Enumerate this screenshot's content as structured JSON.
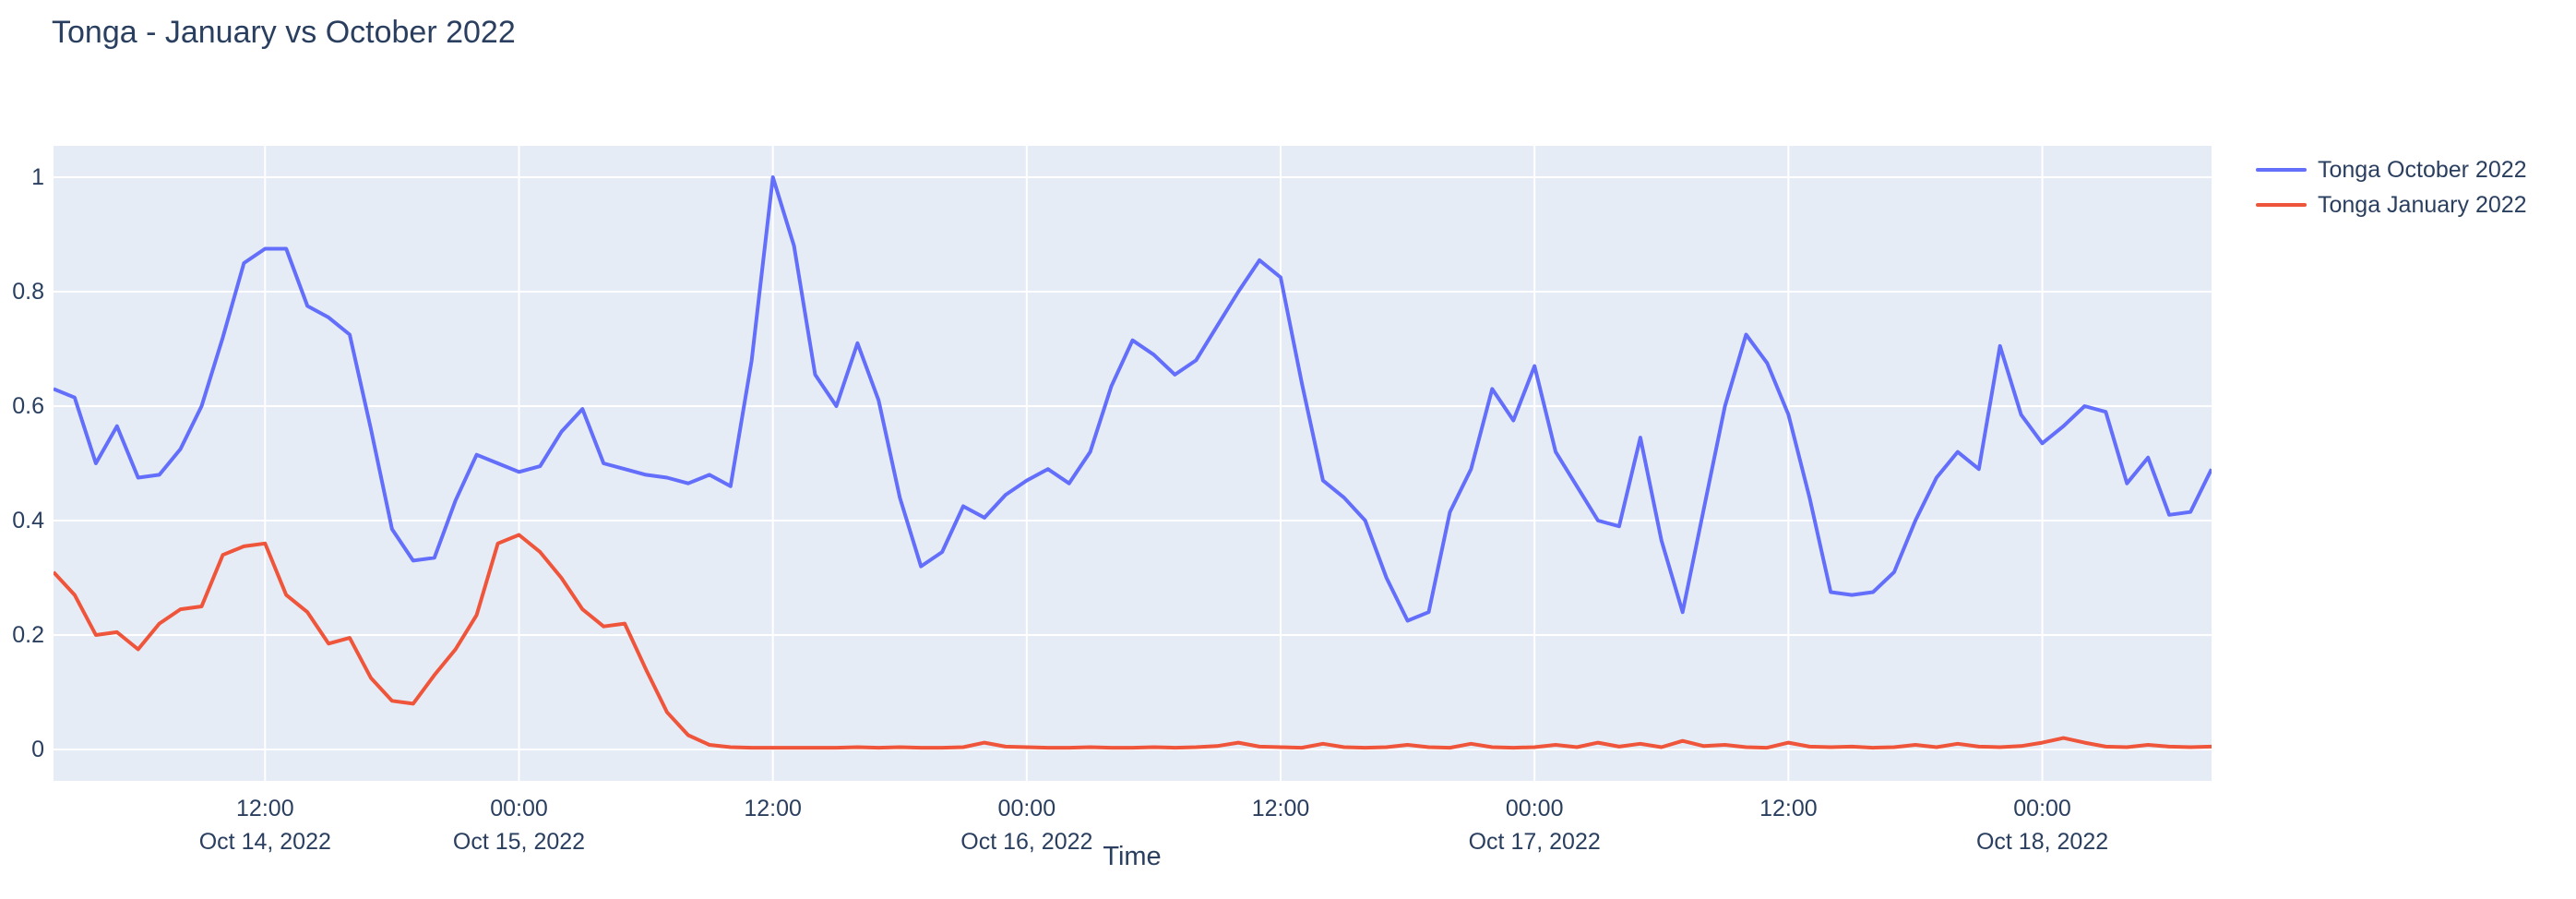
{
  "title": "Tonga - January vs October 2022",
  "colors": {
    "october_line": "#636efa",
    "january_line": "#ef553b",
    "text": "#2a3f5f",
    "plot_background": "#e5ecf6",
    "gridline": "#ffffff"
  },
  "legend": {
    "items": [
      {
        "label": "Tonga October 2022",
        "color": "#636efa"
      },
      {
        "label": "Tonga January 2022",
        "color": "#ef553b"
      }
    ]
  },
  "xaxis": {
    "title": "Time",
    "ticks": [
      {
        "time": "12:00",
        "date": "Oct 14, 2022"
      },
      {
        "time": "00:00",
        "date": "Oct 15, 2022"
      },
      {
        "time": "12:00",
        "date": ""
      },
      {
        "time": "00:00",
        "date": "Oct 16, 2022"
      },
      {
        "time": "12:00",
        "date": ""
      },
      {
        "time": "00:00",
        "date": "Oct 17, 2022"
      },
      {
        "time": "12:00",
        "date": ""
      },
      {
        "time": "00:00",
        "date": "Oct 18, 2022"
      }
    ]
  },
  "yaxis": {
    "ticks": [
      "0",
      "0.2",
      "0.4",
      "0.6",
      "0.8",
      "1"
    ]
  },
  "chart_data": {
    "type": "line",
    "title": "Tonga - January vs October 2022",
    "xlabel": "Time",
    "ylabel": "",
    "x_start": "2022-10-14 02:00",
    "x_step_hours": 1,
    "x_range": [
      "2022-10-14 02:00",
      "2022-10-18 08:00"
    ],
    "ylim": [
      -0.055,
      1.055
    ],
    "grid": true,
    "legend_position": "right",
    "first_tick_hour_offset": 10,
    "tick_interval_hours": 12,
    "series": [
      {
        "name": "Tonga October 2022",
        "color": "#636efa",
        "values": [
          0.63,
          0.615,
          0.5,
          0.565,
          0.475,
          0.48,
          0.525,
          0.6,
          0.72,
          0.85,
          0.875,
          0.875,
          0.775,
          0.755,
          0.725,
          0.56,
          0.385,
          0.33,
          0.335,
          0.435,
          0.515,
          0.5,
          0.485,
          0.495,
          0.555,
          0.595,
          0.5,
          0.49,
          0.48,
          0.475,
          0.465,
          0.48,
          0.46,
          0.68,
          1.0,
          0.88,
          0.655,
          0.6,
          0.71,
          0.61,
          0.44,
          0.32,
          0.345,
          0.425,
          0.405,
          0.445,
          0.47,
          0.49,
          0.465,
          0.52,
          0.635,
          0.715,
          0.69,
          0.655,
          0.68,
          0.74,
          0.8,
          0.855,
          0.825,
          0.64,
          0.47,
          0.44,
          0.4,
          0.3,
          0.225,
          0.24,
          0.415,
          0.49,
          0.63,
          0.575,
          0.67,
          0.52,
          0.46,
          0.4,
          0.39,
          0.545,
          0.365,
          0.24,
          0.42,
          0.6,
          0.725,
          0.675,
          0.585,
          0.44,
          0.275,
          0.27,
          0.275,
          0.31,
          0.4,
          0.475,
          0.52,
          0.49,
          0.705,
          0.585,
          0.535,
          0.565,
          0.6,
          0.59,
          0.465,
          0.51,
          0.41,
          0.415,
          0.49
        ]
      },
      {
        "name": "Tonga January 2022",
        "color": "#ef553b",
        "values": [
          0.31,
          0.27,
          0.2,
          0.205,
          0.175,
          0.22,
          0.245,
          0.25,
          0.34,
          0.355,
          0.36,
          0.27,
          0.24,
          0.185,
          0.195,
          0.125,
          0.085,
          0.08,
          0.13,
          0.175,
          0.235,
          0.36,
          0.375,
          0.345,
          0.3,
          0.245,
          0.215,
          0.22,
          0.14,
          0.065,
          0.025,
          0.008,
          0.004,
          0.003,
          0.003,
          0.003,
          0.003,
          0.003,
          0.004,
          0.003,
          0.004,
          0.003,
          0.003,
          0.004,
          0.012,
          0.005,
          0.004,
          0.003,
          0.003,
          0.004,
          0.003,
          0.003,
          0.004,
          0.003,
          0.004,
          0.006,
          0.012,
          0.005,
          0.004,
          0.003,
          0.01,
          0.004,
          0.003,
          0.004,
          0.008,
          0.004,
          0.003,
          0.01,
          0.004,
          0.003,
          0.004,
          0.008,
          0.004,
          0.012,
          0.005,
          0.01,
          0.004,
          0.015,
          0.006,
          0.008,
          0.004,
          0.003,
          0.012,
          0.005,
          0.004,
          0.005,
          0.003,
          0.004,
          0.008,
          0.004,
          0.01,
          0.005,
          0.004,
          0.006,
          0.012,
          0.02,
          0.012,
          0.005,
          0.004,
          0.008,
          0.005,
          0.004,
          0.005
        ]
      }
    ]
  }
}
